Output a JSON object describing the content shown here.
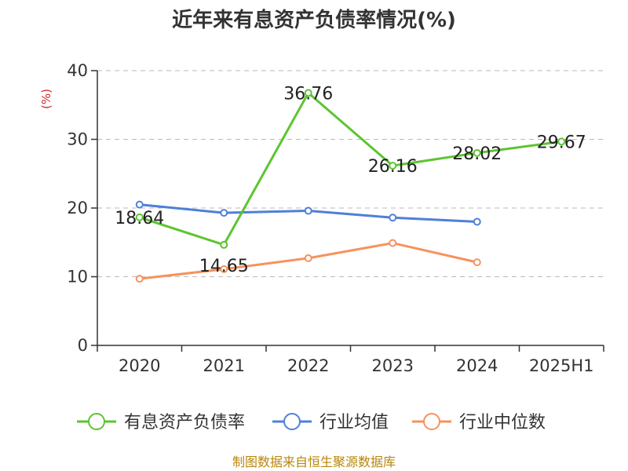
{
  "title": "近年来有息资产负债率情况(%)",
  "source": "制图数据来自恒生聚源数据库",
  "colors": {
    "green": "#5cc531",
    "blue": "#4f7fd9",
    "orange": "#f6925e",
    "axis": "#333333",
    "grid": "#bbbbbb",
    "unit": "#d62728",
    "source": "#b8860b"
  },
  "chart_data": {
    "type": "line",
    "title": "近年来有息资产负债率情况(%)",
    "ylabel": "(%)",
    "xlabel": "",
    "categories": [
      "2020",
      "2021",
      "2022",
      "2023",
      "2024",
      "2025H1"
    ],
    "ylim": [
      0,
      40
    ],
    "yticks": [
      0,
      10,
      20,
      30,
      40
    ],
    "grid": true,
    "legend_position": "bottom",
    "series": [
      {
        "name": "有息资产负债率",
        "color": "#5cc531",
        "values": [
          18.64,
          14.65,
          36.76,
          26.16,
          28.02,
          29.67
        ],
        "labels": [
          "18.64",
          "14.65",
          "36.76",
          "26.16",
          "28.02",
          "29.67"
        ]
      },
      {
        "name": "行业均值",
        "color": "#4f7fd9",
        "values": [
          20.5,
          19.3,
          19.6,
          18.6,
          18.0,
          null
        ]
      },
      {
        "name": "行业中位数",
        "color": "#f6925e",
        "values": [
          9.7,
          11.1,
          12.7,
          14.9,
          12.1,
          null
        ]
      }
    ]
  }
}
